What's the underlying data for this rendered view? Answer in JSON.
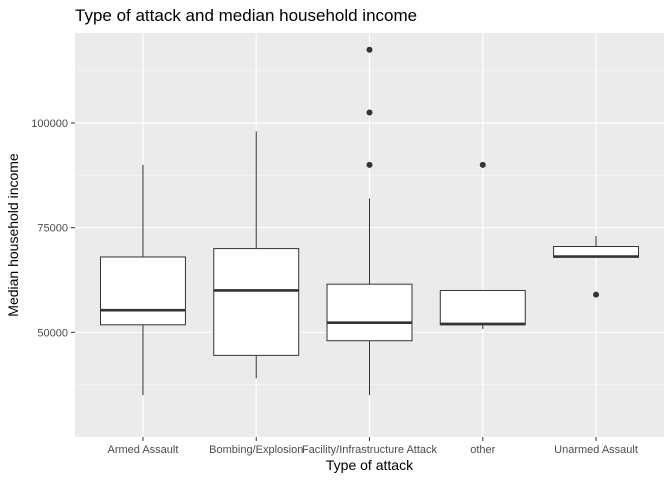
{
  "chart_data": {
    "type": "boxplot",
    "title": "Type of attack and median household income",
    "xlabel": "Type of attack",
    "ylabel": "Median household income",
    "categories": [
      "Armed Assault",
      "Bombing/Explosion",
      "Facility/Infrastructure Attack",
      "other",
      "Unarmed Assault"
    ],
    "y_ticks": [
      50000,
      75000,
      100000
    ],
    "y_tick_labels": [
      "50000",
      "75000",
      "100000"
    ],
    "ylim": [
      25000,
      121500
    ],
    "grid": true,
    "boxes": [
      {
        "category": "Armed Assault",
        "whisker_low": 35000,
        "q1": 51800,
        "median": 55300,
        "q3": 68000,
        "whisker_high": 90000,
        "outliers": []
      },
      {
        "category": "Bombing/Explosion",
        "whisker_low": 39000,
        "q1": 44500,
        "median": 60000,
        "q3": 70000,
        "whisker_high": 98000,
        "outliers": []
      },
      {
        "category": "Facility/Infrastructure Attack",
        "whisker_low": 35000,
        "q1": 48000,
        "median": 52300,
        "q3": 61500,
        "whisker_high": 82000,
        "outliers": [
          90000,
          102500,
          117500
        ]
      },
      {
        "category": "other",
        "whisker_low": 50800,
        "q1": 51800,
        "median": 52000,
        "q3": 60000,
        "whisker_high": 60000,
        "outliers": [
          90000
        ]
      },
      {
        "category": "Unarmed Assault",
        "whisker_low": 68000,
        "q1": 68000,
        "median": 68100,
        "q3": 70500,
        "whisker_high": 73000,
        "outliers": [
          59000
        ]
      }
    ],
    "colors": {
      "panel": "#ebebeb",
      "grid_major": "#ffffff",
      "box_fill": "#ffffff",
      "box_stroke": "#333333"
    }
  }
}
